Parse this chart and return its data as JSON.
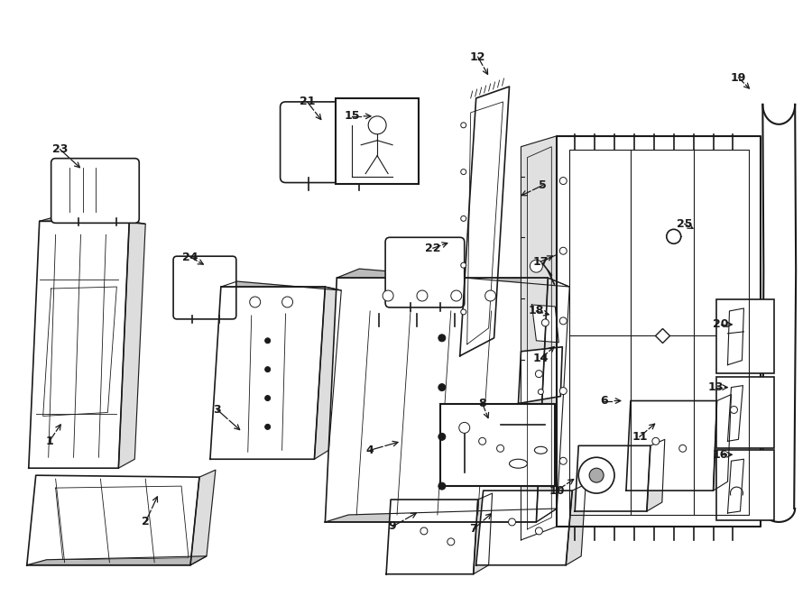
{
  "bg_color": "#ffffff",
  "line_color": "#1a1a1a",
  "fig_width": 9.0,
  "fig_height": 6.61,
  "dpi": 100,
  "labels": [
    [
      "1",
      53,
      490,
      68,
      468
    ],
    [
      "2",
      160,
      580,
      175,
      548
    ],
    [
      "3",
      240,
      455,
      268,
      480
    ],
    [
      "4",
      410,
      500,
      445,
      490
    ],
    [
      "5",
      602,
      205,
      575,
      218
    ],
    [
      "6",
      670,
      445,
      693,
      445
    ],
    [
      "7",
      525,
      588,
      548,
      568
    ],
    [
      "8",
      535,
      448,
      543,
      468
    ],
    [
      "9",
      435,
      585,
      465,
      568
    ],
    [
      "10",
      618,
      545,
      640,
      530
    ],
    [
      "11",
      710,
      485,
      730,
      468
    ],
    [
      "12",
      530,
      62,
      543,
      85
    ],
    [
      "13",
      795,
      430,
      812,
      430
    ],
    [
      "14",
      600,
      398,
      618,
      382
    ],
    [
      "15",
      390,
      128,
      415,
      128
    ],
    [
      "16",
      800,
      505,
      817,
      505
    ],
    [
      "17",
      600,
      290,
      617,
      282
    ],
    [
      "18",
      595,
      345,
      613,
      350
    ],
    [
      "19",
      820,
      85,
      835,
      100
    ],
    [
      "20",
      800,
      360,
      817,
      360
    ],
    [
      "21",
      340,
      112,
      358,
      135
    ],
    [
      "22",
      480,
      275,
      500,
      268
    ],
    [
      "23",
      65,
      165,
      90,
      188
    ],
    [
      "24",
      210,
      285,
      228,
      295
    ],
    [
      "25",
      760,
      248,
      773,
      255
    ]
  ]
}
